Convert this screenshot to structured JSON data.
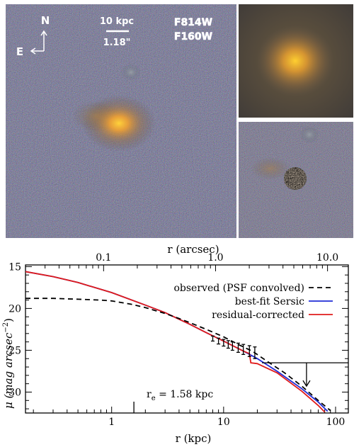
{
  "image_panel": {
    "north_label": "N",
    "east_label": "E",
    "scalebar_kpc": "10 kpc",
    "scalebar_arcsec": "1.18\"",
    "filter_blue": "F814W",
    "filter_red": "F160W",
    "filter_blue_color": "#3344ff",
    "filter_red_color": "#ff2222"
  },
  "chart_data": {
    "type": "line",
    "xlabel": "r (kpc)",
    "top_xlabel": "r (arcsec)",
    "ylabel_main": "μ (mag arcsec",
    "ylabel_sup": "−2",
    "ylabel_close": ")",
    "xscale": "log",
    "xlim": [
      0.17,
      130
    ],
    "ylim": [
      32.5,
      14.8
    ],
    "x_ticks": [
      "1",
      "10",
      "100"
    ],
    "top_ticks": [
      "0.1",
      "1.0",
      "10.0"
    ],
    "y_ticks": [
      "15",
      "20",
      "25",
      "30"
    ],
    "legend_placement": "top-right",
    "legend": [
      {
        "label": "observed (PSF convolved)",
        "color": "#000000",
        "style": "dashed"
      },
      {
        "label": "best-fit Sersic",
        "color": "#1f2bd6",
        "style": "solid"
      },
      {
        "label": "residual-corrected",
        "color": "#e01b1b",
        "style": "solid"
      }
    ],
    "re_label": "r",
    "re_sub": "e",
    "re_value": " = 1.58 kpc",
    "re_kpc": 1.58,
    "limit_level": 26.5,
    "limit_x_start": 22,
    "limit_arrow_x": 55,
    "series": [
      {
        "name": "observed (PSF convolved)",
        "color": "#000000",
        "dash": true,
        "x": [
          0.17,
          0.3,
          0.5,
          0.8,
          1.0,
          1.5,
          2.0,
          3.0,
          4.0,
          5.0,
          7.0,
          10.0,
          14.0,
          18.0,
          25.0,
          35.0,
          50.0,
          70.0,
          90.0
        ],
        "y": [
          18.8,
          18.8,
          18.9,
          19.0,
          19.1,
          19.5,
          19.9,
          20.6,
          21.2,
          21.7,
          22.5,
          23.4,
          24.4,
          25.1,
          26.4,
          27.7,
          29.3,
          31.0,
          32.2
        ]
      },
      {
        "name": "best-fit Sersic",
        "color": "#1f2bd6",
        "dash": false,
        "x": [
          0.17,
          0.3,
          0.5,
          1.0,
          2.0,
          3.0,
          5.0,
          7.0,
          10.0,
          15.0,
          20.0,
          30.0,
          50.0,
          70.0,
          85.0
        ],
        "y": [
          15.6,
          16.2,
          16.9,
          18.1,
          19.6,
          20.5,
          21.9,
          22.9,
          23.9,
          25.1,
          26.0,
          27.5,
          29.6,
          31.2,
          32.3
        ]
      },
      {
        "name": "residual-corrected",
        "color": "#e01b1b",
        "dash": false,
        "x": [
          0.17,
          0.3,
          0.5,
          1.0,
          2.0,
          3.0,
          5.0,
          7.0,
          10.0,
          15.0,
          17.0,
          17.5,
          20.0,
          30.0,
          50.0,
          70.0,
          80.0
        ],
        "y": [
          15.6,
          16.2,
          16.9,
          18.1,
          19.6,
          20.5,
          21.9,
          22.9,
          23.9,
          25.1,
          25.4,
          26.5,
          26.6,
          27.7,
          29.9,
          31.6,
          32.4
        ]
      }
    ],
    "errorbars": {
      "x": [
        8.0,
        9.0,
        10.0,
        11.0,
        12.0,
        13.5,
        15.0,
        17.0,
        19.0
      ],
      "y": [
        23.6,
        23.9,
        24.1,
        24.3,
        24.5,
        24.7,
        24.9,
        25.1,
        25.3
      ],
      "err": [
        0.3,
        0.35,
        0.4,
        0.45,
        0.5,
        0.55,
        0.6,
        0.65,
        0.7
      ]
    }
  }
}
